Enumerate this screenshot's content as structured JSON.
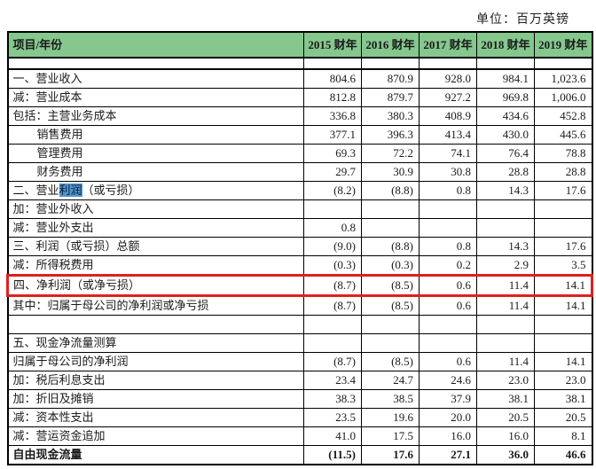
{
  "page": {
    "unit_label": "单位：百万英镑"
  },
  "colors": {
    "header_bg": "#85c78d",
    "red_box": "#e02020",
    "text_highlight_bg": "#4e95d0",
    "grid": "#000000"
  },
  "table": {
    "header": {
      "item_col": "项目/年份",
      "year_cols": [
        "2015 财年",
        "2016 财年",
        "2017 财年",
        "2018 财年",
        "2019 财年"
      ]
    },
    "rows": [
      {
        "type": "spacer",
        "label": "",
        "values": [
          "",
          "",
          "",
          "",
          ""
        ]
      },
      {
        "label": "一、营业收入",
        "values": [
          "804.6",
          "870.9",
          "928.0",
          "984.1",
          "1,023.6"
        ]
      },
      {
        "label": "减：营业成本",
        "values": [
          "812.8",
          "879.7",
          "927.2",
          "969.8",
          "1,006.0"
        ]
      },
      {
        "label": "包括：主营业务成本",
        "values": [
          "336.8",
          "380.3",
          "408.9",
          "434.6",
          "452.8"
        ]
      },
      {
        "label": "销售费用",
        "indent": true,
        "values": [
          "377.1",
          "396.3",
          "413.4",
          "430.0",
          "445.6"
        ]
      },
      {
        "label": "管理费用",
        "indent": true,
        "values": [
          "69.3",
          "72.2",
          "74.1",
          "76.4",
          "78.8"
        ]
      },
      {
        "label": "财务费用",
        "indent": true,
        "values": [
          "29.7",
          "30.9",
          "30.8",
          "28.8",
          "28.8"
        ]
      },
      {
        "label_parts": [
          {
            "text": "二、营业"
          },
          {
            "text": "利润",
            "highlight": true
          },
          {
            "text": "（或亏损）"
          }
        ],
        "values": [
          "(8.2)",
          "(8.8)",
          "0.8",
          "14.3",
          "17.6"
        ]
      },
      {
        "label": "加：营业外收入",
        "values": [
          "",
          "",
          "",
          "",
          ""
        ]
      },
      {
        "label": "减：营业外支出",
        "values": [
          "0.8",
          "",
          "",
          "",
          ""
        ]
      },
      {
        "label": "三、利润（或亏损）总额",
        "values": [
          "(9.0)",
          "(8.8)",
          "0.8",
          "14.3",
          "17.6"
        ]
      },
      {
        "label": "减：所得税费用",
        "values": [
          "(0.3)",
          "(0.3)",
          "0.2",
          "2.9",
          "3.5"
        ]
      },
      {
        "label": "四、净利润（或净亏损）",
        "red_box": true,
        "values": [
          "(8.7)",
          "(8.5)",
          "0.6",
          "11.4",
          "14.1"
        ]
      },
      {
        "label": "其中：归属于母公司的净利润或净亏损",
        "values": [
          "(8.7)",
          "(8.5)",
          "0.6",
          "11.4",
          "14.1"
        ]
      },
      {
        "label": "",
        "values": [
          "",
          "",
          "",
          "",
          ""
        ]
      },
      {
        "label": "五、现金净流量测算",
        "values": [
          "",
          "",
          "",
          "",
          ""
        ]
      },
      {
        "label": "归属于母公司的净利润",
        "values": [
          "(8.7)",
          "(8.5)",
          "0.6",
          "11.4",
          "14.1"
        ]
      },
      {
        "label": "加：税后利息支出",
        "values": [
          "23.4",
          "24.7",
          "24.6",
          "23.0",
          "23.0"
        ]
      },
      {
        "label": "加：折旧及摊销",
        "values": [
          "38.3",
          "38.5",
          "37.9",
          "38.1",
          "38.1"
        ]
      },
      {
        "label": "减：资本性支出",
        "values": [
          "23.5",
          "19.6",
          "20.0",
          "20.5",
          "20.5"
        ]
      },
      {
        "label": "减：营运资金追加",
        "values": [
          "41.0",
          "17.5",
          "16.0",
          "16.0",
          "8.1"
        ]
      },
      {
        "label": "自由现金流量",
        "bold": true,
        "values": [
          "(11.5)",
          "17.6",
          "27.1",
          "36.0",
          "46.6"
        ]
      }
    ]
  }
}
